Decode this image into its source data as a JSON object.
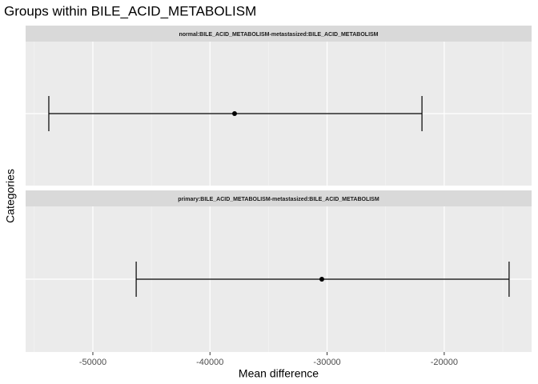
{
  "chart_data": {
    "type": "errorbar",
    "title": "Groups within BILE_ACID_METABOLISM",
    "xlabel": "Mean difference",
    "ylabel": "Categories",
    "xlim": [
      -55740,
      -12540
    ],
    "xticks": [
      -50000,
      -40000,
      -30000,
      -20000
    ],
    "grid": true,
    "color": "#000000",
    "panels": [
      {
        "label": "normal:BILE_ACID_METABOLISM-metastasized:BILE_ACID_METABOLISM",
        "value": -37900,
        "lower": -53760,
        "upper": -21900
      },
      {
        "label": "primary:BILE_ACID_METABOLISM-metastasized:BILE_ACID_METABOLISM",
        "value": -30450,
        "lower": -46300,
        "upper": -14460
      }
    ]
  }
}
